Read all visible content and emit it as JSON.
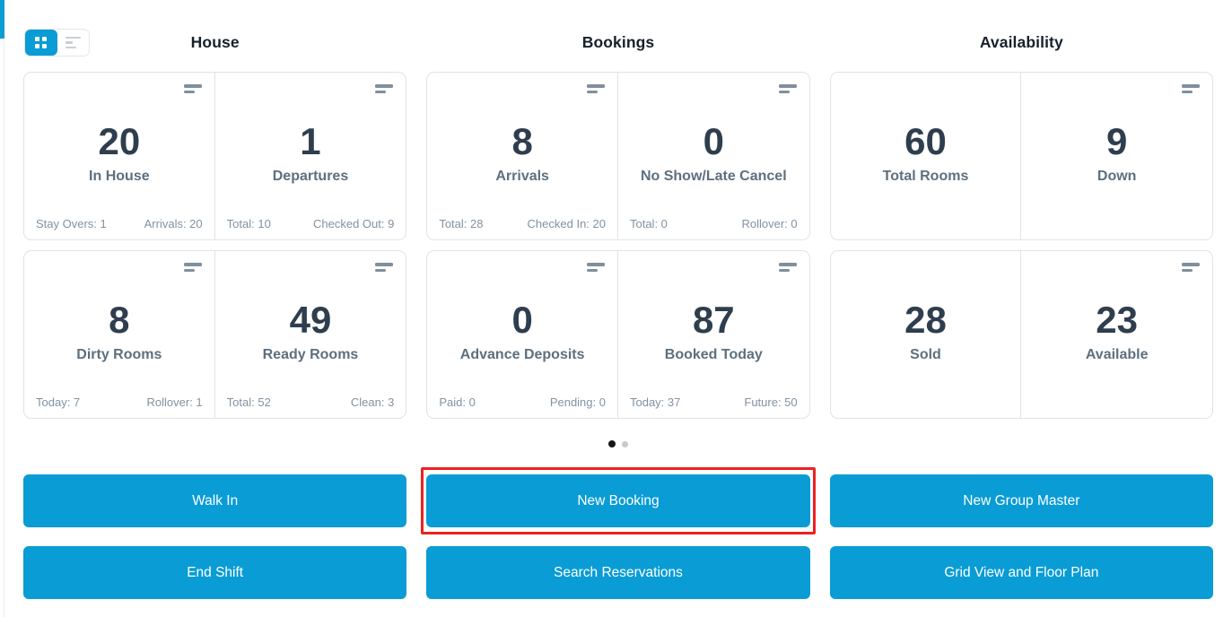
{
  "colors": {
    "accent_blue": "#0a9cd4",
    "value_text": "#2e3e4e",
    "label_text": "#5e6f7e",
    "stat_text": "#8292a0",
    "annotation_red": "#ed2121"
  },
  "view_toggle": {
    "active_view": "grid"
  },
  "sections": [
    {
      "title": "House",
      "cards": [
        {
          "value": "20",
          "label": "In House",
          "stat_left": "Stay Overs: 1",
          "stat_right": "Arrivals: 20"
        },
        {
          "value": "1",
          "label": "Departures",
          "stat_left": "Total: 10",
          "stat_right": "Checked Out: 9"
        },
        {
          "value": "8",
          "label": "Dirty Rooms",
          "stat_left": "Today: 7",
          "stat_right": "Rollover: 1"
        },
        {
          "value": "49",
          "label": "Ready Rooms",
          "stat_left": "Total: 52",
          "stat_right": "Clean: 3"
        }
      ]
    },
    {
      "title": "Bookings",
      "cards": [
        {
          "value": "8",
          "label": "Arrivals",
          "stat_left": "Total: 28",
          "stat_right": "Checked In: 20"
        },
        {
          "value": "0",
          "label": "No Show/Late Cancel",
          "stat_left": "Total: 0",
          "stat_right": "Rollover: 0"
        },
        {
          "value": "0",
          "label": "Advance Deposits",
          "stat_left": "Paid: 0",
          "stat_right": "Pending: 0"
        },
        {
          "value": "87",
          "label": "Booked Today",
          "stat_left": "Today: 37",
          "stat_right": "Future: 50"
        }
      ]
    },
    {
      "title": "Availability",
      "cards": [
        {
          "value": "60",
          "label": "Total Rooms"
        },
        {
          "value": "9",
          "label": "Down"
        },
        {
          "value": "28",
          "label": "Sold"
        },
        {
          "value": "23",
          "label": "Available"
        }
      ]
    }
  ],
  "pagination": {
    "pages": 2,
    "active_page": 1
  },
  "actions": {
    "walk_in": "Walk In",
    "new_booking": "New Booking",
    "new_group_master": "New Group Master",
    "end_shift": "End Shift",
    "search_reservations": "Search Reservations",
    "grid_view_floor_plan": "Grid View and Floor Plan"
  },
  "annotation": {
    "highlighted_action": "New Booking"
  }
}
